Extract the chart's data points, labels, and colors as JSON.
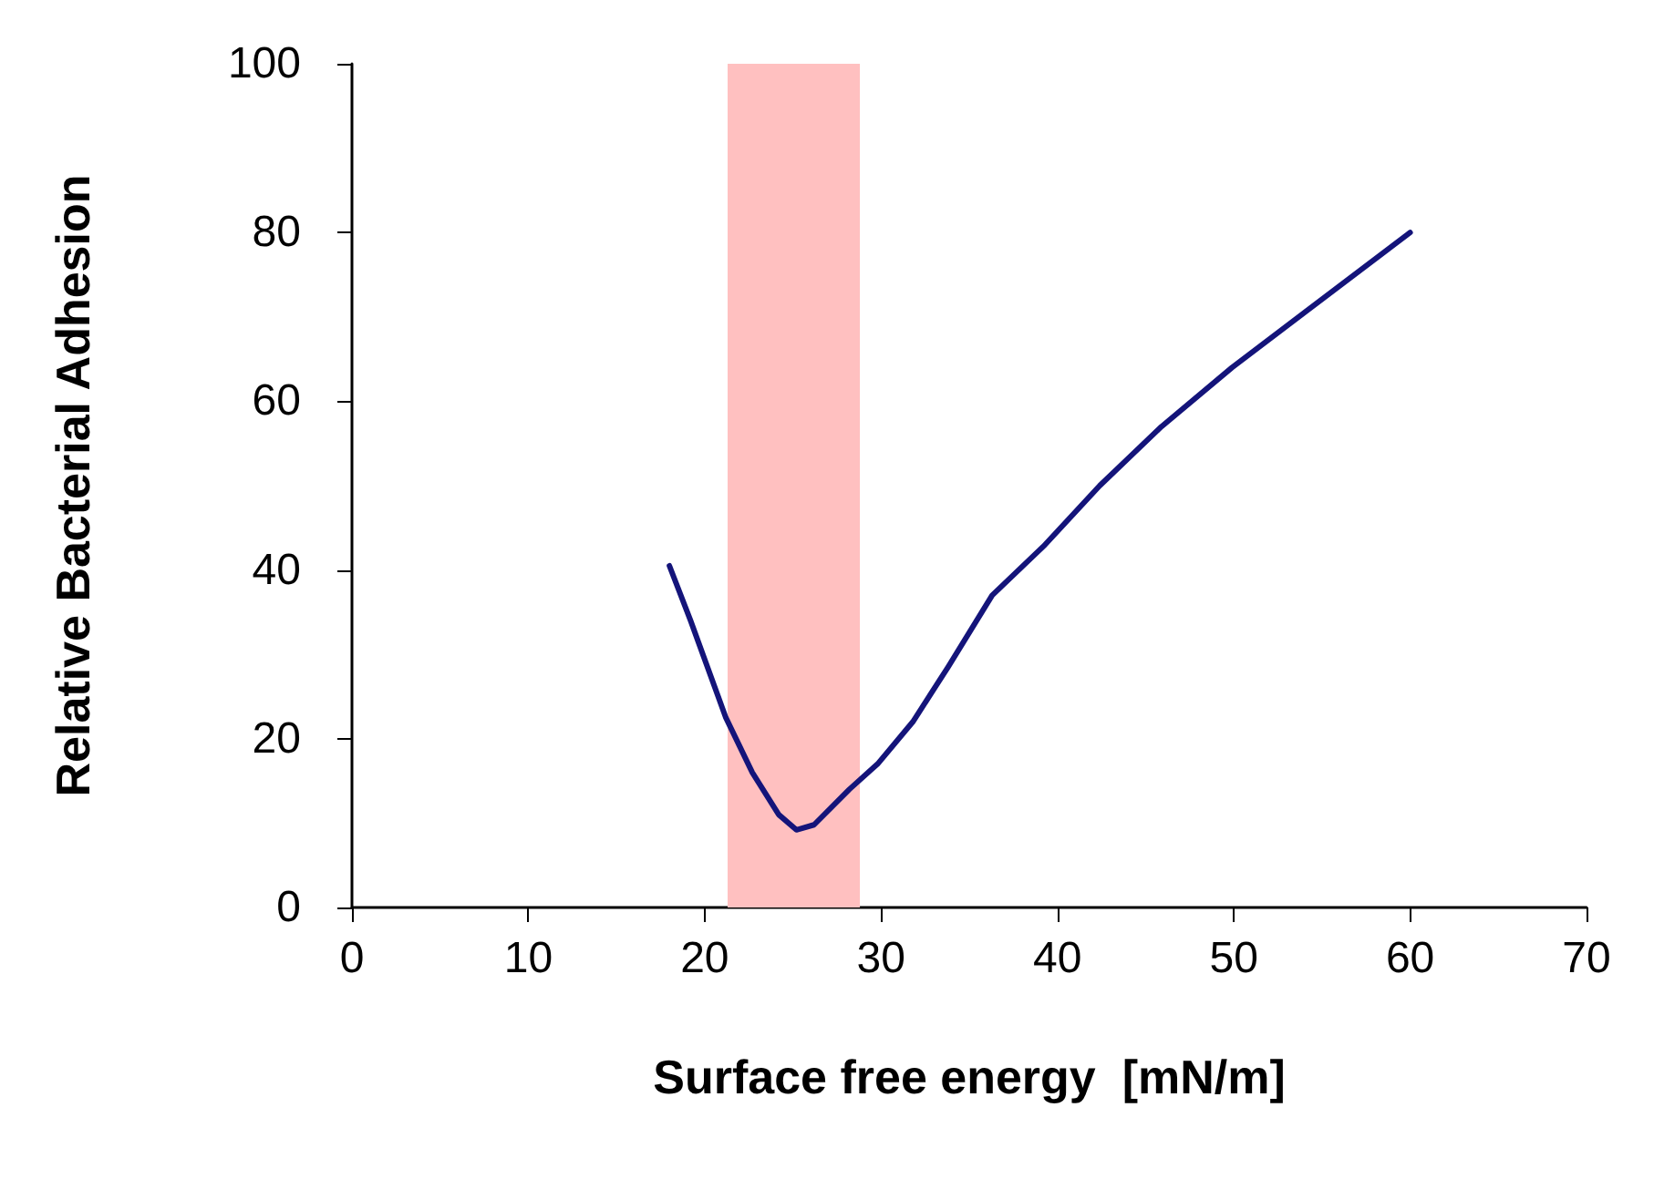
{
  "chart_data": {
    "type": "line",
    "xlabel": "Surface free energy  [mN/m]",
    "ylabel": "Relative Bacterial Adhesion",
    "x": [
      18,
      19.2,
      21.2,
      22.7,
      24.2,
      25.2,
      26.2,
      28.2,
      29.8,
      31.8,
      33.8,
      36.3,
      39.3,
      42.4,
      45.9,
      49.9,
      54,
      60
    ],
    "series": [
      {
        "color": "#14147a",
        "values": [
          40.5,
          34,
          22.5,
          16,
          11,
          9.2,
          9.8,
          14,
          17,
          22,
          28.5,
          37,
          43,
          50,
          57,
          64,
          70.5,
          80
        ]
      }
    ],
    "bands": [
      {
        "axis": "x",
        "from": 21.3,
        "to": 28.8,
        "color": "#ffc0c0"
      }
    ],
    "xlim": [
      0,
      70
    ],
    "xticks": [
      0,
      10,
      20,
      30,
      40,
      50,
      60,
      70
    ],
    "ylim": [
      0,
      100
    ],
    "yticks": [
      0,
      20,
      40,
      60,
      80,
      100
    ],
    "grid": false,
    "marker": "none",
    "line_style": "solid"
  }
}
